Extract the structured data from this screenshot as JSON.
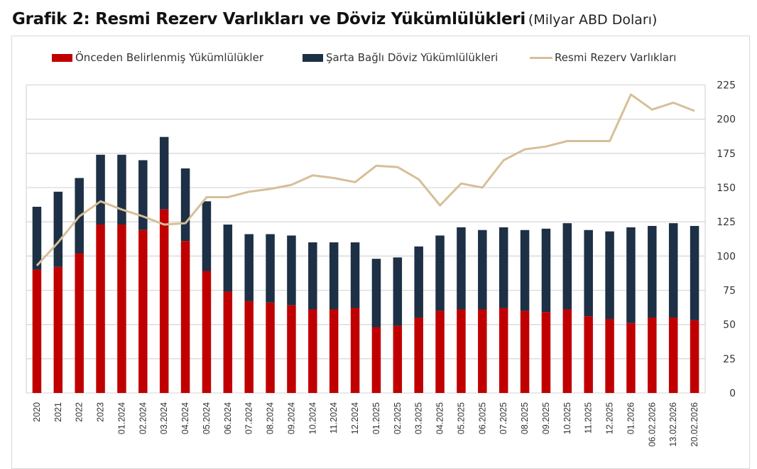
{
  "title": {
    "main": "Grafik 2: Resmi Rezerv Varlıkları ve Döviz Yükümlülükleri",
    "unit": "(Milyar ABD Doları)"
  },
  "legend": {
    "items": [
      {
        "label": "Önceden Belirlenmiş Yükümlülükler",
        "color": "#c00000",
        "kind": "bar"
      },
      {
        "label": "Şarta Bağlı Döviz Yükümlülükleri",
        "color": "#1d3045",
        "kind": "bar"
      },
      {
        "label": "Resmi Rezerv Varlıkları",
        "color": "#d6bf98",
        "kind": "line"
      }
    ]
  },
  "colors": {
    "predetermined": "#c00000",
    "contingent": "#1d3045",
    "reserves": "#d6bf98",
    "grid": "#d9d9d9"
  },
  "chart_data": {
    "type": "bar",
    "subtype": "stacked bar with line overlay",
    "title": "Grafik 2: Resmi Rezerv Varlıkları ve Döviz Yükümlülükleri (Milyar ABD Doları)",
    "xlabel": "",
    "ylabel": "Milyar ABD Doları",
    "y_axis_position": "right",
    "ylim": [
      0,
      225
    ],
    "yticks": [
      0,
      25,
      50,
      75,
      100,
      125,
      150,
      175,
      200,
      225
    ],
    "grid": true,
    "legend_position": "top",
    "categories": [
      "2020",
      "2021",
      "2022",
      "2023",
      "01.2024",
      "02.2024",
      "03.2024",
      "04.2024",
      "05.2024",
      "06.2024",
      "07.2024",
      "08.2024",
      "09.2024",
      "10.2024",
      "11.2024",
      "12.2024",
      "01.2025",
      "02.2025",
      "03.2025",
      "04.2025",
      "05.2025",
      "06.2025",
      "07.2025",
      "08.2025",
      "09.2025",
      "10.2025",
      "11.2025",
      "12.2025",
      "01.2026",
      "06.02.2026",
      "13.02.2026",
      "20.02.2026"
    ],
    "series": [
      {
        "name": "Önceden Belirlenmiş Yükümlülükler",
        "type": "bar",
        "stack": "liabilities",
        "values": [
          90,
          92,
          102,
          123,
          123,
          119,
          134,
          111,
          89,
          74,
          67,
          66,
          64,
          61,
          61,
          62,
          48,
          49,
          55,
          60,
          61,
          61,
          62,
          60,
          59,
          61,
          56,
          54,
          51,
          55,
          55,
          53
        ]
      },
      {
        "name": "Şarta Bağlı Döviz Yükümlülükleri",
        "type": "bar",
        "stack": "liabilities",
        "values": [
          46,
          55,
          55,
          51,
          51,
          51,
          53,
          53,
          51,
          49,
          49,
          50,
          51,
          49,
          49,
          48,
          50,
          50,
          52,
          55,
          60,
          58,
          59,
          59,
          61,
          63,
          63,
          64,
          70,
          67,
          69,
          69
        ]
      },
      {
        "name": "Resmi Rezerv Varlıkları",
        "type": "line",
        "values": [
          93,
          110,
          129,
          140,
          134,
          129,
          123,
          124,
          143,
          143,
          147,
          149,
          152,
          159,
          157,
          154,
          166,
          165,
          156,
          137,
          153,
          150,
          170,
          178,
          180,
          184,
          184,
          184,
          218,
          207,
          212,
          206
        ]
      }
    ]
  }
}
